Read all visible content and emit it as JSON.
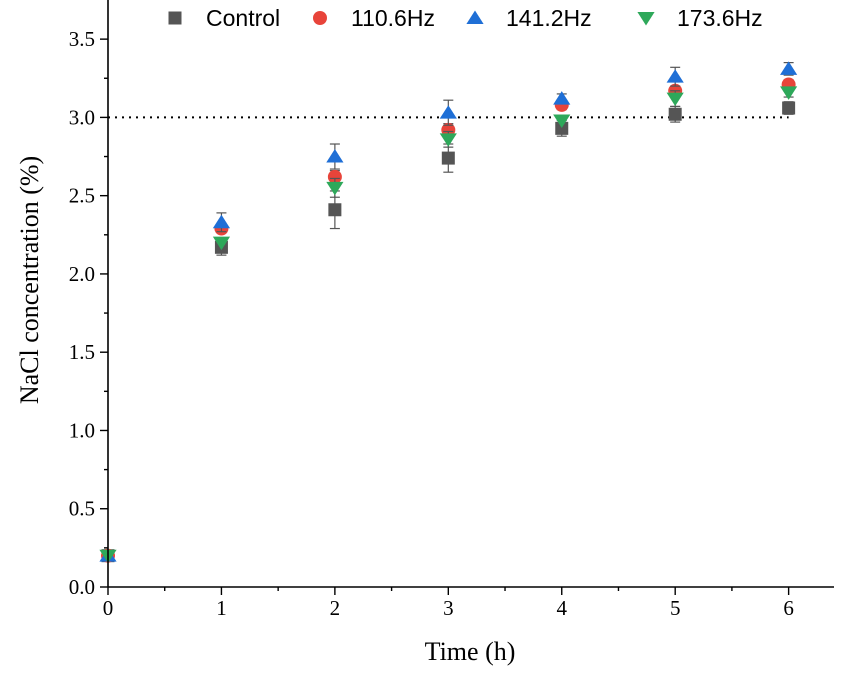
{
  "chart_data": {
    "type": "scatter",
    "xlabel": "Time (h)",
    "ylabel": "NaCl concentration (%)",
    "xlim": [
      0,
      6.4
    ],
    "ylim": [
      0,
      3.75
    ],
    "x_ticks": [
      "0",
      "1",
      "2",
      "3",
      "4",
      "5",
      "6"
    ],
    "y_ticks": [
      "0.0",
      "0.5",
      "1.0",
      "1.5",
      "2.0",
      "2.5",
      "3.0",
      "3.5"
    ],
    "reference_line": {
      "y": 3.0,
      "style": "dotted"
    },
    "legend_position": "top",
    "x": [
      0,
      1,
      2,
      3,
      4,
      5,
      6
    ],
    "series": [
      {
        "name": "Control",
        "marker": "square",
        "color": "#555555",
        "values": [
          0.2,
          2.17,
          2.41,
          2.74,
          2.93,
          3.02,
          3.06
        ],
        "errors": [
          0.01,
          0.05,
          0.12,
          0.09,
          0.05,
          0.05,
          0.04
        ]
      },
      {
        "name": "110.6Hz",
        "marker": "circle",
        "color": "#e8443a",
        "values": [
          0.2,
          2.29,
          2.62,
          2.92,
          3.08,
          3.17,
          3.21
        ],
        "errors": [
          0.01,
          0.02,
          0.04,
          0.04,
          0.03,
          0.03,
          0.03
        ]
      },
      {
        "name": "141.2Hz",
        "marker": "triangle-up",
        "color": "#1f6fd6",
        "values": [
          0.2,
          2.33,
          2.75,
          3.03,
          3.12,
          3.26,
          3.31
        ],
        "errors": [
          0.01,
          0.06,
          0.08,
          0.08,
          0.03,
          0.06,
          0.04
        ]
      },
      {
        "name": "173.6Hz",
        "marker": "triangle-down",
        "color": "#2ea85a",
        "values": [
          0.2,
          2.2,
          2.55,
          2.86,
          2.98,
          3.12,
          3.16
        ],
        "errors": [
          0.01,
          0.02,
          0.06,
          0.05,
          0.03,
          0.05,
          0.03
        ]
      }
    ]
  }
}
